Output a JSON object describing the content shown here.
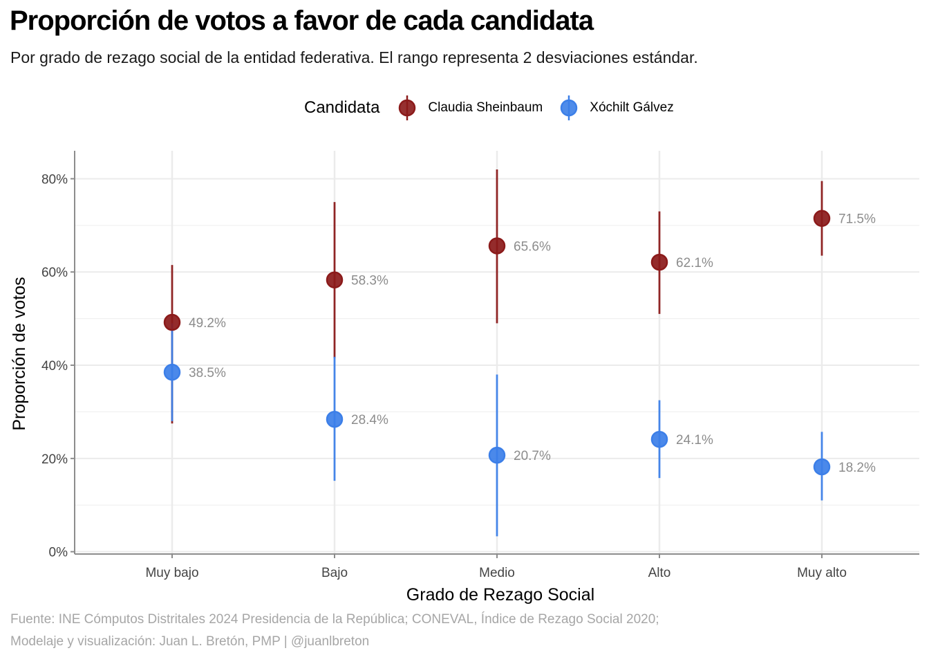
{
  "chart_data": {
    "type": "pointrange",
    "title": "Proporción de votos a favor de cada candidata",
    "subtitle": "Por grado de rezago social de la entidad federativa. El rango representa 2 desviaciones estándar.",
    "xlabel": "Grado de Rezago Social",
    "ylabel": "Proporción de votos",
    "categories": [
      "Muy bajo",
      "Bajo",
      "Medio",
      "Alto",
      "Muy alto"
    ],
    "ylim": [
      -0.005,
      0.86
    ],
    "yticks": [
      0,
      0.2,
      0.4,
      0.6,
      0.8
    ],
    "ytick_labels": [
      "0%",
      "20%",
      "40%",
      "60%",
      "80%"
    ],
    "grid": true,
    "legend": {
      "title": "Candidata",
      "placement": "top"
    },
    "series": [
      {
        "name": "Claudia Sheinbaum",
        "color": "#8b1a1a",
        "values": [
          0.492,
          0.583,
          0.656,
          0.621,
          0.715
        ],
        "lower": [
          0.275,
          0.415,
          0.49,
          0.51,
          0.635
        ],
        "upper": [
          0.615,
          0.75,
          0.82,
          0.73,
          0.795
        ],
        "labels": [
          "49.2%",
          "58.3%",
          "65.6%",
          "62.1%",
          "71.5%"
        ]
      },
      {
        "name": "Xóchilt Gálvez",
        "color": "#3c7fe8",
        "values": [
          0.385,
          0.284,
          0.207,
          0.241,
          0.182
        ],
        "lower": [
          0.28,
          0.152,
          0.033,
          0.158,
          0.11
        ],
        "upper": [
          0.49,
          0.418,
          0.38,
          0.325,
          0.257
        ],
        "labels": [
          "38.5%",
          "28.4%",
          "20.7%",
          "24.1%",
          "18.2%"
        ]
      }
    ],
    "caption": [
      "Fuente: INE Cómputos Distritales 2024 Presidencia de la República; CONEVAL, Índice de Rezago Social 2020;",
      "Modelaje y visualización: Juan L. Bretón, PMP | @juanlbreton"
    ]
  }
}
